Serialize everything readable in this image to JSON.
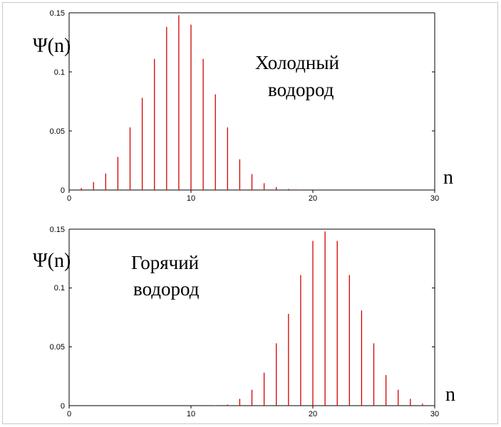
{
  "chart_data": [
    {
      "type": "bar",
      "ylabel": "Ψ(n)",
      "xlabel": "n",
      "annotation": [
        "Холодный",
        "водород"
      ],
      "x_ticks": [
        "0",
        "10",
        "20",
        "30"
      ],
      "y_ticks": [
        "0",
        "0.05",
        "0.1",
        "0.15"
      ],
      "xlim": [
        0,
        30
      ],
      "ylim": [
        0,
        0.15
      ],
      "grid": false,
      "x": [
        0,
        1,
        2,
        3,
        4,
        5,
        6,
        7,
        8,
        9,
        10,
        11,
        12,
        13,
        14,
        15,
        16,
        17,
        18,
        19,
        20,
        21,
        22,
        23,
        24,
        25,
        26,
        27,
        28,
        29,
        30
      ],
      "values": [
        0,
        0.0017,
        0.0067,
        0.014,
        0.028,
        0.053,
        0.078,
        0.111,
        0.138,
        0.148,
        0.14,
        0.111,
        0.081,
        0.053,
        0.026,
        0.0135,
        0.0058,
        0.0025,
        0.0009,
        0.0003,
        0.0001,
        0,
        0,
        0,
        0,
        0,
        0,
        0,
        0,
        0,
        0
      ]
    },
    {
      "type": "bar",
      "ylabel": "Ψ(n)",
      "xlabel": "n",
      "annotation": [
        "Горячий",
        "водород"
      ],
      "x_ticks": [
        "0",
        "10",
        "20",
        "30"
      ],
      "y_ticks": [
        "0",
        "0.05",
        "0.1",
        "0.15"
      ],
      "xlim": [
        0,
        30
      ],
      "ylim": [
        0,
        0.15
      ],
      "grid": false,
      "x": [
        0,
        1,
        2,
        3,
        4,
        5,
        6,
        7,
        8,
        9,
        10,
        11,
        12,
        13,
        14,
        15,
        16,
        17,
        18,
        19,
        20,
        21,
        22,
        23,
        24,
        25,
        26,
        27,
        28,
        29,
        30
      ],
      "values": [
        0,
        0,
        0,
        0,
        0,
        0,
        0,
        0,
        0,
        0,
        0,
        0,
        0.0003,
        0.0009,
        0.0058,
        0.0135,
        0.028,
        0.053,
        0.078,
        0.111,
        0.14,
        0.148,
        0.14,
        0.111,
        0.081,
        0.053,
        0.026,
        0.0135,
        0.0058,
        0.0017,
        0.0006
      ]
    }
  ],
  "colors": {
    "bars": "#d40000",
    "axes": "#000000"
  }
}
